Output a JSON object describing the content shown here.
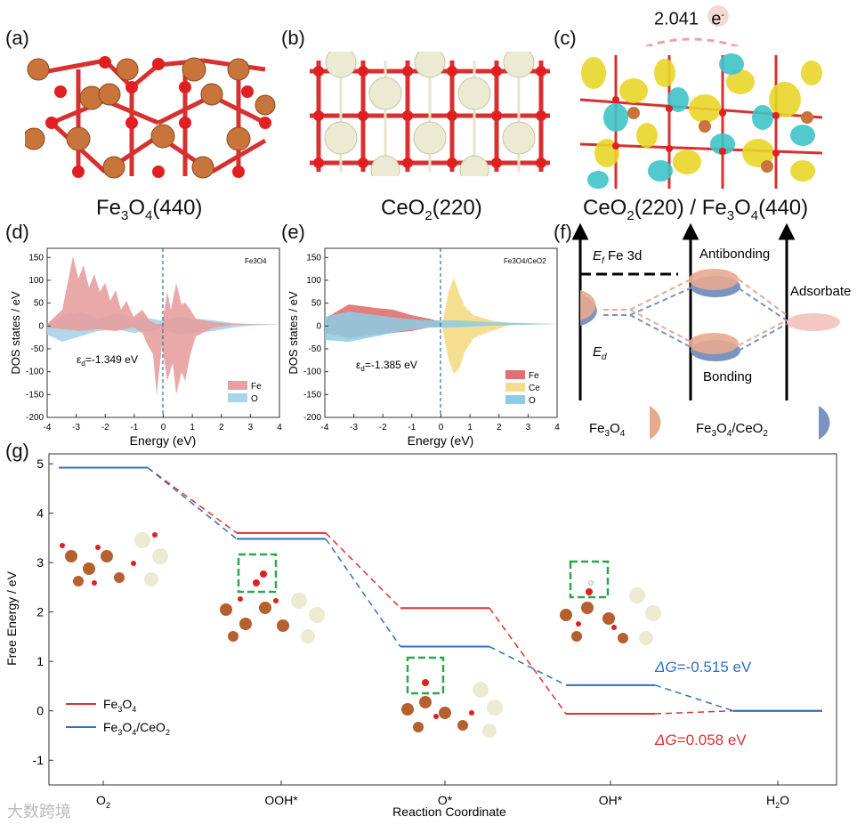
{
  "panels": {
    "a": {
      "label": "(a)",
      "caption": "Fe3O4(440)",
      "cap_main": "Fe",
      "cap_sub": "3",
      "cap_mid": "O",
      "cap_sub2": "4",
      "cap_tail": "(440)"
    },
    "b": {
      "label": "(b)",
      "cap_main": "CeO",
      "cap_sub": "2",
      "cap_tail": "(220)"
    },
    "c": {
      "label": "(c)",
      "cap_a": "CeO",
      "cap_a_sub": "2",
      "cap_b": "(220) / Fe",
      "cap_b_sub": "3",
      "cap_c": "O",
      "cap_c_sub": "4",
      "cap_d": "(440)",
      "charge_value": "2.041",
      "charge_unit": "e",
      "charge_sup": "-"
    },
    "d": {
      "label": "(d)",
      "corner": "Fe3O4",
      "eps": "ε",
      "eps_sub": "d",
      "eps_val": "=-1.349 eV",
      "legend": [
        "Fe",
        "O"
      ],
      "colors": [
        "#e8a0a0",
        "#a8d4e8"
      ]
    },
    "e": {
      "label": "(e)",
      "corner": "Fe3O4/CeO2",
      "eps": "ε",
      "eps_sub": "d",
      "eps_val": "=-1.385 eV",
      "legend": [
        "Fe",
        "Ce",
        "O"
      ],
      "colors": [
        "#e07070",
        "#f5dc8a",
        "#8ccce4"
      ]
    },
    "f": {
      "label": "(f)",
      "ef": "E",
      "ef_sub": "f",
      "ef_tail": " Fe 3d",
      "ed": "E",
      "ed_sub": "d",
      "antibonding": "Antibonding",
      "bonding": "Bonding",
      "adsorbate": "Adsorbate",
      "leg1": "Fe",
      "leg1_sub": "3",
      "leg1_b": "O",
      "leg1_sub2": "4",
      "leg2": "Fe",
      "leg2_sub": "3",
      "leg2_b": "O",
      "leg2_sub2": "4",
      "leg2_c": "/CeO",
      "leg2_sub3": "2",
      "color_fe3o4": "#e8a990",
      "color_hetero": "#7a93bf"
    },
    "g": {
      "label": "(g)"
    }
  },
  "dos_axes": {
    "xlabel": "Energy (eV)",
    "ylabel": "DOS states / eV",
    "xticks": [
      "-4",
      "-3",
      "-2",
      "-1",
      "0",
      "1",
      "2",
      "3",
      "4"
    ],
    "yticks": [
      "150",
      "100",
      "50",
      "0",
      "-50",
      "-100",
      "-150",
      "-200"
    ]
  },
  "chart_data": {
    "type": "line",
    "title": "",
    "xlabel": "Reaction Coordinate",
    "ylabel": "Free Energy / eV",
    "categories": [
      "O2",
      "OOH*",
      "O*",
      "OH*",
      "H2O"
    ],
    "ylim": [
      -1.5,
      5.2
    ],
    "yticks": [
      -1,
      0,
      1,
      2,
      3,
      4,
      5
    ],
    "series": [
      {
        "name": "Fe3O4",
        "color": "#e03030",
        "values": [
          4.92,
          3.6,
          2.08,
          -0.06,
          0.0
        ]
      },
      {
        "name": "Fe3O4/CeO2",
        "color": "#2f6fbf",
        "values": [
          4.92,
          3.48,
          1.3,
          0.52,
          0.0
        ]
      }
    ],
    "annotations": [
      {
        "text_a": "ΔG",
        "text_b": "=-0.515 eV",
        "color": "#2f6fbf"
      },
      {
        "text_a": "ΔG",
        "text_b": "=0.058 eV",
        "color": "#e03030"
      }
    ],
    "legend": [
      {
        "main": "Fe",
        "s1": "3",
        "m2": "O",
        "s2": "4",
        "tail": "",
        "s3": ""
      },
      {
        "main": "Fe",
        "s1": "3",
        "m2": "O",
        "s2": "4",
        "tail": "/CeO",
        "s3": "2"
      }
    ],
    "tick_labels": [
      {
        "main": "O",
        "sub": "2",
        "tail": ""
      },
      {
        "main": "OOH*",
        "sub": "",
        "tail": ""
      },
      {
        "main": "O*",
        "sub": "",
        "tail": ""
      },
      {
        "main": "OH*",
        "sub": "",
        "tail": ""
      },
      {
        "main": "H",
        "sub": "2",
        "tail": "O"
      }
    ]
  },
  "watermark": "大数跨境"
}
